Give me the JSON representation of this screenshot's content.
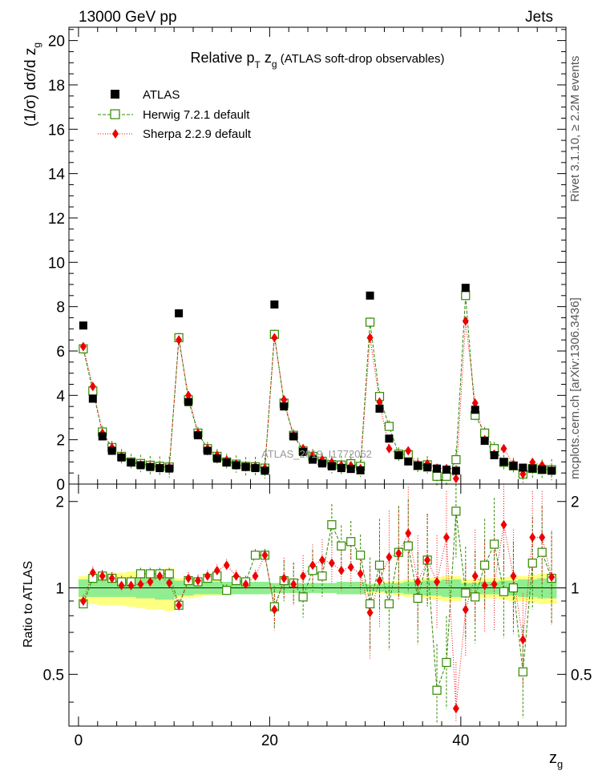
{
  "header": {
    "energy_label": "13000 GeV pp",
    "process_label": "Jets"
  },
  "side_labels": {
    "rivet": "Rivet 3.1.10, ≥ 2.2M events",
    "source": "mcplots.cern.ch [arXiv:1306.3436]"
  },
  "watermark": "ATLAS_2019_I1772062",
  "chart_data": {
    "type": "scatter",
    "title": "Relative p_T z_g (ATLAS soft-drop observables)",
    "title_parts": {
      "a": "Relative p",
      "b": "T",
      "c": " z",
      "d": "g",
      "e": " (ATLAS soft-drop observables)"
    },
    "xlabel": "z",
    "xlabel_sub": "g",
    "ylabel": "(1/σ) dσ/d z",
    "ylabel_sub": "g",
    "ratio_ylabel": "Ratio to ATLAS",
    "xlim": [
      -1,
      51
    ],
    "ylim": [
      0,
      20.6
    ],
    "ratio_ylim": [
      0.33,
      2.3
    ],
    "x_ticks": [
      "0",
      "20",
      "40"
    ],
    "y_ticks": [
      "0",
      "2",
      "4",
      "6",
      "8",
      "10",
      "12",
      "14",
      "16",
      "18",
      "20"
    ],
    "ratio_ticks": [
      "0.5",
      "1",
      "2"
    ],
    "colors": {
      "atlas": "#000000",
      "herwig": "#338800",
      "sherpa": "#ee0000",
      "band_inner": "#90ee90",
      "band_outer": "#ffff80"
    },
    "legend": [
      {
        "name": "ATLAS",
        "marker": "square-filled"
      },
      {
        "name": "Herwig 7.2.1 default",
        "marker": "square-open"
      },
      {
        "name": "Sherpa 2.2.9 default",
        "marker": "diamond"
      }
    ],
    "x": [
      0.5,
      1.5,
      2.5,
      3.5,
      4.5,
      5.5,
      6.5,
      7.5,
      8.5,
      9.5,
      10.5,
      11.5,
      12.5,
      13.5,
      14.5,
      15.5,
      16.5,
      17.5,
      18.5,
      19.5,
      20.5,
      21.5,
      22.5,
      23.5,
      24.5,
      25.5,
      26.5,
      27.5,
      28.5,
      29.5,
      30.5,
      31.5,
      32.5,
      33.5,
      34.5,
      35.5,
      36.5,
      37.5,
      38.5,
      39.5,
      40.5,
      41.5,
      42.5,
      43.5,
      44.5,
      45.5,
      46.5,
      47.5,
      48.5,
      49.5
    ],
    "series": [
      {
        "name": "ATLAS",
        "values": [
          7.15,
          3.85,
          2.15,
          1.5,
          1.2,
          0.97,
          0.85,
          0.77,
          0.72,
          0.7,
          7.7,
          3.7,
          2.2,
          1.5,
          1.15,
          0.97,
          0.85,
          0.77,
          0.72,
          0.6,
          8.1,
          3.5,
          2.15,
          1.45,
          1.1,
          0.93,
          0.8,
          0.72,
          0.68,
          0.62,
          8.5,
          3.4,
          2.05,
          1.3,
          1.02,
          0.83,
          0.75,
          0.7,
          0.65,
          0.6,
          8.85,
          3.35,
          1.95,
          1.3,
          1.0,
          0.82,
          0.74,
          0.7,
          0.64,
          0.6
        ]
      },
      {
        "name": "Herwig 7.2.1 default",
        "values": [
          6.1,
          4.2,
          2.35,
          1.65,
          1.25,
          1.0,
          0.93,
          0.85,
          0.8,
          0.77,
          6.6,
          3.8,
          2.3,
          1.6,
          1.25,
          1.0,
          0.9,
          0.8,
          0.78,
          0.72,
          6.75,
          3.65,
          2.2,
          1.5,
          1.25,
          1.03,
          0.88,
          0.86,
          0.92,
          0.8,
          7.3,
          3.95,
          2.6,
          1.35,
          1.33,
          0.83,
          0.87,
          0.35,
          0.35,
          1.1,
          8.5,
          3.1,
          2.3,
          1.6,
          0.98,
          0.82,
          0.45,
          0.7,
          0.66,
          0.65
        ],
        "ratio": [
          0.88,
          1.08,
          1.1,
          1.08,
          1.05,
          1.05,
          1.12,
          1.12,
          1.12,
          1.12,
          0.87,
          1.06,
          1.05,
          1.08,
          1.1,
          0.98,
          1.06,
          1.05,
          1.3,
          1.3,
          0.86,
          1.06,
          1.04,
          0.93,
          1.15,
          1.1,
          1.66,
          1.4,
          1.45,
          1.3,
          0.88,
          1.2,
          0.88,
          1.33,
          1.4,
          0.92,
          1.25,
          0.44,
          0.55,
          1.85,
          0.96,
          0.93,
          1.2,
          1.42,
          0.97,
          1.0,
          0.51,
          1.22,
          1.33,
          1.08
        ]
      },
      {
        "name": "Sherpa 2.2.9 default",
        "values": [
          6.2,
          4.4,
          2.3,
          1.65,
          1.25,
          0.98,
          0.87,
          0.8,
          0.77,
          0.75,
          6.5,
          4.0,
          2.3,
          1.6,
          1.3,
          1.08,
          0.9,
          0.8,
          0.79,
          0.72,
          6.6,
          3.8,
          2.2,
          1.6,
          1.3,
          1.1,
          0.98,
          0.85,
          0.83,
          0.7,
          6.6,
          3.7,
          1.6,
          1.3,
          1.5,
          0.9,
          0.92,
          0.72,
          0.7,
          0.25,
          7.35,
          3.65,
          2.0,
          1.35,
          1.6,
          0.9,
          0.45,
          0.98,
          0.85,
          0.62
        ],
        "ratio": [
          0.9,
          1.13,
          1.1,
          1.08,
          1.02,
          1.02,
          1.03,
          1.05,
          1.1,
          1.04,
          0.87,
          1.08,
          1.06,
          1.1,
          1.15,
          1.2,
          1.1,
          1.03,
          1.1,
          1.3,
          0.84,
          1.08,
          1.03,
          1.1,
          1.2,
          1.25,
          1.22,
          1.15,
          1.18,
          1.12,
          0.82,
          1.06,
          1.28,
          1.32,
          1.55,
          1.05,
          1.25,
          1.05,
          1.5,
          0.38,
          0.84,
          1.1,
          1.02,
          1.03,
          1.66,
          1.1,
          0.66,
          1.5,
          1.5,
          1.09
        ]
      }
    ],
    "ratio_band": {
      "inner": [
        0.07,
        0.07,
        0.07,
        0.07,
        0.07,
        0.07,
        0.08,
        0.08,
        0.09,
        0.09,
        0.06,
        0.06,
        0.05,
        0.05,
        0.05,
        0.05,
        0.05,
        0.05,
        0.05,
        0.05,
        0.04,
        0.04,
        0.04,
        0.04,
        0.04,
        0.04,
        0.04,
        0.05,
        0.05,
        0.05,
        0.03,
        0.03,
        0.04,
        0.04,
        0.05,
        0.05,
        0.06,
        0.06,
        0.07,
        0.07,
        0.04,
        0.04,
        0.05,
        0.05,
        0.06,
        0.06,
        0.07,
        0.07,
        0.08,
        0.08
      ],
      "outer": [
        0.1,
        0.12,
        0.13,
        0.13,
        0.13,
        0.14,
        0.15,
        0.16,
        0.16,
        0.17,
        0.08,
        0.08,
        0.07,
        0.06,
        0.06,
        0.05,
        0.05,
        0.05,
        0.05,
        0.05,
        0.04,
        0.04,
        0.04,
        0.04,
        0.04,
        0.04,
        0.04,
        0.05,
        0.05,
        0.05,
        0.04,
        0.04,
        0.05,
        0.06,
        0.07,
        0.07,
        0.08,
        0.09,
        0.1,
        0.1,
        0.07,
        0.07,
        0.08,
        0.08,
        0.09,
        0.1,
        0.1,
        0.11,
        0.12,
        0.12
      ]
    }
  }
}
